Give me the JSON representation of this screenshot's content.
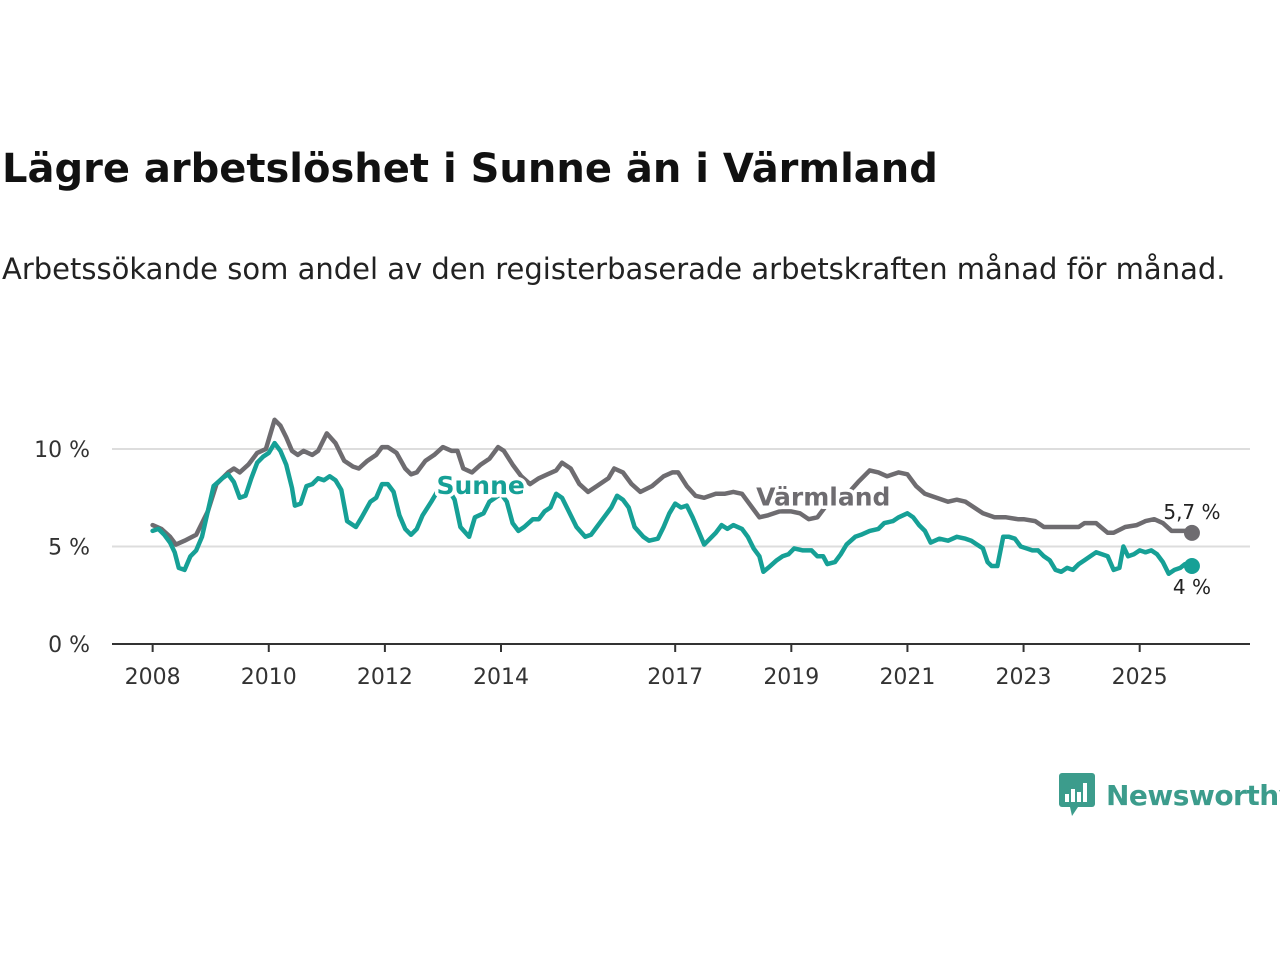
{
  "title": "Lägre arbetslöshet i Sunne än i Värmland",
  "subtitle": "Arbetssökande som andel av den registerbaserade arbetskraften månad för månad.",
  "brand": {
    "name": "Newsworthy",
    "icon": "newsworthy-logo-icon"
  },
  "colors": {
    "sunne": "#16a096",
    "varmland": "#6e6c70",
    "grid": "#dddddd",
    "axis": "#333333",
    "brand": "#3c9c8c"
  },
  "chart_data": {
    "type": "line",
    "ylabel": "",
    "xlabel": "",
    "ylim": [
      0,
      12
    ],
    "xlim": [
      2007.3,
      2026.9
    ],
    "y_ticks": [
      {
        "value": 0,
        "label": "0 %"
      },
      {
        "value": 5,
        "label": "5 %"
      },
      {
        "value": 10,
        "label": "10 %"
      }
    ],
    "x_ticks": [
      {
        "value": 2008,
        "label": "2008"
      },
      {
        "value": 2010,
        "label": "2010"
      },
      {
        "value": 2012,
        "label": "2012"
      },
      {
        "value": 2014,
        "label": "2014"
      },
      {
        "value": 2017,
        "label": "2017"
      },
      {
        "value": 2019,
        "label": "2019"
      },
      {
        "value": 2021,
        "label": "2021"
      },
      {
        "value": 2023,
        "label": "2023"
      },
      {
        "value": 2025,
        "label": "2025"
      }
    ],
    "series": [
      {
        "name": "Värmland",
        "key": "varmland",
        "end_label": "5,7 %",
        "points": [
          [
            2008.0,
            6.1
          ],
          [
            2008.15,
            5.9
          ],
          [
            2008.3,
            5.5
          ],
          [
            2008.4,
            5.1
          ],
          [
            2008.55,
            5.3
          ],
          [
            2008.75,
            5.6
          ],
          [
            2008.95,
            6.8
          ],
          [
            2009.1,
            8.2
          ],
          [
            2009.3,
            8.8
          ],
          [
            2009.4,
            9.0
          ],
          [
            2009.5,
            8.8
          ],
          [
            2009.65,
            9.2
          ],
          [
            2009.8,
            9.8
          ],
          [
            2009.95,
            10.0
          ],
          [
            2010.0,
            10.5
          ],
          [
            2010.1,
            11.5
          ],
          [
            2010.2,
            11.2
          ],
          [
            2010.3,
            10.6
          ],
          [
            2010.4,
            9.9
          ],
          [
            2010.5,
            9.7
          ],
          [
            2010.6,
            9.9
          ],
          [
            2010.75,
            9.7
          ],
          [
            2010.85,
            9.9
          ],
          [
            2011.0,
            10.8
          ],
          [
            2011.15,
            10.3
          ],
          [
            2011.3,
            9.4
          ],
          [
            2011.45,
            9.1
          ],
          [
            2011.55,
            9.0
          ],
          [
            2011.7,
            9.4
          ],
          [
            2011.85,
            9.7
          ],
          [
            2011.95,
            10.1
          ],
          [
            2012.05,
            10.1
          ],
          [
            2012.2,
            9.8
          ],
          [
            2012.35,
            9.0
          ],
          [
            2012.45,
            8.7
          ],
          [
            2012.55,
            8.8
          ],
          [
            2012.7,
            9.4
          ],
          [
            2012.85,
            9.7
          ],
          [
            2013.0,
            10.1
          ],
          [
            2013.15,
            9.9
          ],
          [
            2013.25,
            9.9
          ],
          [
            2013.35,
            9.0
          ],
          [
            2013.5,
            8.8
          ],
          [
            2013.65,
            9.2
          ],
          [
            2013.8,
            9.5
          ],
          [
            2013.95,
            10.1
          ],
          [
            2014.05,
            9.9
          ],
          [
            2014.2,
            9.2
          ],
          [
            2014.35,
            8.6
          ],
          [
            2014.5,
            8.2
          ],
          [
            2014.65,
            8.5
          ],
          [
            2014.8,
            8.7
          ],
          [
            2014.95,
            8.9
          ],
          [
            2015.05,
            9.3
          ],
          [
            2015.2,
            9.0
          ],
          [
            2015.35,
            8.2
          ],
          [
            2015.5,
            7.8
          ],
          [
            2015.65,
            8.1
          ],
          [
            2015.85,
            8.5
          ],
          [
            2015.95,
            9.0
          ],
          [
            2016.1,
            8.8
          ],
          [
            2016.25,
            8.2
          ],
          [
            2016.4,
            7.8
          ],
          [
            2016.6,
            8.1
          ],
          [
            2016.8,
            8.6
          ],
          [
            2016.95,
            8.8
          ],
          [
            2017.05,
            8.8
          ],
          [
            2017.2,
            8.1
          ],
          [
            2017.35,
            7.6
          ],
          [
            2017.5,
            7.5
          ],
          [
            2017.7,
            7.7
          ],
          [
            2017.85,
            7.7
          ],
          [
            2018.0,
            7.8
          ],
          [
            2018.15,
            7.7
          ],
          [
            2018.3,
            7.1
          ],
          [
            2018.45,
            6.5
          ],
          [
            2018.6,
            6.6
          ],
          [
            2018.8,
            6.8
          ],
          [
            2019.0,
            6.8
          ],
          [
            2019.15,
            6.7
          ],
          [
            2019.3,
            6.4
          ],
          [
            2019.45,
            6.5
          ],
          [
            2019.6,
            7.1
          ],
          [
            2019.8,
            7.5
          ],
          [
            2020.0,
            7.8
          ],
          [
            2020.15,
            8.3
          ],
          [
            2020.35,
            8.9
          ],
          [
            2020.5,
            8.8
          ],
          [
            2020.65,
            8.6
          ],
          [
            2020.85,
            8.8
          ],
          [
            2021.0,
            8.7
          ],
          [
            2021.15,
            8.1
          ],
          [
            2021.3,
            7.7
          ],
          [
            2021.5,
            7.5
          ],
          [
            2021.7,
            7.3
          ],
          [
            2021.85,
            7.4
          ],
          [
            2022.0,
            7.3
          ],
          [
            2022.15,
            7.0
          ],
          [
            2022.3,
            6.7
          ],
          [
            2022.5,
            6.5
          ],
          [
            2022.7,
            6.5
          ],
          [
            2022.9,
            6.4
          ],
          [
            2023.0,
            6.4
          ],
          [
            2023.2,
            6.3
          ],
          [
            2023.35,
            6.0
          ],
          [
            2023.6,
            6.0
          ],
          [
            2023.8,
            6.0
          ],
          [
            2023.95,
            6.0
          ],
          [
            2024.05,
            6.2
          ],
          [
            2024.25,
            6.2
          ],
          [
            2024.45,
            5.7
          ],
          [
            2024.55,
            5.7
          ],
          [
            2024.75,
            6.0
          ],
          [
            2024.95,
            6.1
          ],
          [
            2025.1,
            6.3
          ],
          [
            2025.25,
            6.4
          ],
          [
            2025.4,
            6.2
          ],
          [
            2025.55,
            5.8
          ],
          [
            2025.7,
            5.8
          ],
          [
            2025.8,
            5.8
          ],
          [
            2025.9,
            5.7
          ]
        ]
      },
      {
        "name": "Sunne",
        "key": "sunne",
        "end_label": "4 %",
        "points": [
          [
            2008.0,
            5.8
          ],
          [
            2008.1,
            5.9
          ],
          [
            2008.2,
            5.6
          ],
          [
            2008.3,
            5.2
          ],
          [
            2008.38,
            4.7
          ],
          [
            2008.45,
            3.9
          ],
          [
            2008.55,
            3.8
          ],
          [
            2008.65,
            4.5
          ],
          [
            2008.75,
            4.8
          ],
          [
            2008.85,
            5.5
          ],
          [
            2008.95,
            6.8
          ],
          [
            2009.05,
            8.1
          ],
          [
            2009.2,
            8.5
          ],
          [
            2009.3,
            8.7
          ],
          [
            2009.4,
            8.3
          ],
          [
            2009.5,
            7.5
          ],
          [
            2009.6,
            7.6
          ],
          [
            2009.7,
            8.5
          ],
          [
            2009.8,
            9.3
          ],
          [
            2009.9,
            9.6
          ],
          [
            2010.0,
            9.8
          ],
          [
            2010.1,
            10.3
          ],
          [
            2010.2,
            9.9
          ],
          [
            2010.3,
            9.2
          ],
          [
            2010.4,
            8.0
          ],
          [
            2010.45,
            7.1
          ],
          [
            2010.55,
            7.2
          ],
          [
            2010.65,
            8.1
          ],
          [
            2010.75,
            8.2
          ],
          [
            2010.85,
            8.5
          ],
          [
            2010.95,
            8.4
          ],
          [
            2011.05,
            8.6
          ],
          [
            2011.15,
            8.4
          ],
          [
            2011.25,
            7.9
          ],
          [
            2011.35,
            6.3
          ],
          [
            2011.5,
            6.0
          ],
          [
            2011.6,
            6.5
          ],
          [
            2011.75,
            7.3
          ],
          [
            2011.85,
            7.5
          ],
          [
            2011.95,
            8.2
          ],
          [
            2012.05,
            8.2
          ],
          [
            2012.15,
            7.8
          ],
          [
            2012.25,
            6.6
          ],
          [
            2012.35,
            5.9
          ],
          [
            2012.45,
            5.6
          ],
          [
            2012.55,
            5.9
          ],
          [
            2012.65,
            6.6
          ],
          [
            2012.8,
            7.3
          ],
          [
            2012.9,
            7.8
          ],
          [
            2013.0,
            7.9
          ],
          [
            2013.1,
            7.9
          ],
          [
            2013.2,
            7.4
          ],
          [
            2013.3,
            6.0
          ],
          [
            2013.45,
            5.5
          ],
          [
            2013.55,
            6.5
          ],
          [
            2013.7,
            6.7
          ],
          [
            2013.8,
            7.3
          ],
          [
            2013.9,
            7.5
          ],
          [
            2014.0,
            7.7
          ],
          [
            2014.1,
            7.3
          ],
          [
            2014.2,
            6.2
          ],
          [
            2014.3,
            5.8
          ],
          [
            2014.4,
            6.0
          ],
          [
            2014.55,
            6.4
          ],
          [
            2014.65,
            6.4
          ],
          [
            2014.75,
            6.8
          ],
          [
            2014.85,
            7.0
          ],
          [
            2014.95,
            7.7
          ],
          [
            2015.05,
            7.5
          ],
          [
            2015.15,
            6.9
          ],
          [
            2015.3,
            6.0
          ],
          [
            2015.45,
            5.5
          ],
          [
            2015.55,
            5.6
          ],
          [
            2015.65,
            6.0
          ],
          [
            2015.8,
            6.6
          ],
          [
            2015.9,
            7.0
          ],
          [
            2016.0,
            7.6
          ],
          [
            2016.1,
            7.4
          ],
          [
            2016.2,
            7.0
          ],
          [
            2016.3,
            6.0
          ],
          [
            2016.45,
            5.5
          ],
          [
            2016.55,
            5.3
          ],
          [
            2016.7,
            5.4
          ],
          [
            2016.8,
            6.0
          ],
          [
            2016.9,
            6.7
          ],
          [
            2017.0,
            7.2
          ],
          [
            2017.1,
            7.0
          ],
          [
            2017.2,
            7.1
          ],
          [
            2017.3,
            6.5
          ],
          [
            2017.4,
            5.8
          ],
          [
            2017.5,
            5.1
          ],
          [
            2017.6,
            5.4
          ],
          [
            2017.7,
            5.7
          ],
          [
            2017.8,
            6.1
          ],
          [
            2017.9,
            5.9
          ],
          [
            2018.0,
            6.1
          ],
          [
            2018.15,
            5.9
          ],
          [
            2018.25,
            5.5
          ],
          [
            2018.35,
            4.9
          ],
          [
            2018.45,
            4.5
          ],
          [
            2018.52,
            3.7
          ],
          [
            2018.6,
            3.9
          ],
          [
            2018.75,
            4.3
          ],
          [
            2018.85,
            4.5
          ],
          [
            2018.95,
            4.6
          ],
          [
            2019.05,
            4.9
          ],
          [
            2019.2,
            4.8
          ],
          [
            2019.35,
            4.8
          ],
          [
            2019.45,
            4.5
          ],
          [
            2019.55,
            4.5
          ],
          [
            2019.62,
            4.1
          ],
          [
            2019.75,
            4.2
          ],
          [
            2019.85,
            4.6
          ],
          [
            2019.95,
            5.1
          ],
          [
            2020.1,
            5.5
          ],
          [
            2020.2,
            5.6
          ],
          [
            2020.35,
            5.8
          ],
          [
            2020.5,
            5.9
          ],
          [
            2020.6,
            6.2
          ],
          [
            2020.75,
            6.3
          ],
          [
            2020.85,
            6.5
          ],
          [
            2021.0,
            6.7
          ],
          [
            2021.1,
            6.5
          ],
          [
            2021.2,
            6.1
          ],
          [
            2021.3,
            5.8
          ],
          [
            2021.4,
            5.2
          ],
          [
            2021.55,
            5.4
          ],
          [
            2021.7,
            5.3
          ],
          [
            2021.85,
            5.5
          ],
          [
            2022.0,
            5.4
          ],
          [
            2022.1,
            5.3
          ],
          [
            2022.2,
            5.1
          ],
          [
            2022.3,
            4.9
          ],
          [
            2022.38,
            4.2
          ],
          [
            2022.45,
            4.0
          ],
          [
            2022.55,
            4.0
          ],
          [
            2022.65,
            5.5
          ],
          [
            2022.75,
            5.5
          ],
          [
            2022.85,
            5.4
          ],
          [
            2022.95,
            5.0
          ],
          [
            2023.05,
            4.9
          ],
          [
            2023.15,
            4.8
          ],
          [
            2023.25,
            4.8
          ],
          [
            2023.35,
            4.5
          ],
          [
            2023.45,
            4.3
          ],
          [
            2023.55,
            3.8
          ],
          [
            2023.65,
            3.7
          ],
          [
            2023.75,
            3.9
          ],
          [
            2023.85,
            3.8
          ],
          [
            2023.95,
            4.1
          ],
          [
            2024.05,
            4.3
          ],
          [
            2024.15,
            4.5
          ],
          [
            2024.25,
            4.7
          ],
          [
            2024.35,
            4.6
          ],
          [
            2024.45,
            4.5
          ],
          [
            2024.55,
            3.8
          ],
          [
            2024.65,
            3.9
          ],
          [
            2024.72,
            5.0
          ],
          [
            2024.8,
            4.5
          ],
          [
            2024.9,
            4.6
          ],
          [
            2025.0,
            4.8
          ],
          [
            2025.1,
            4.7
          ],
          [
            2025.2,
            4.8
          ],
          [
            2025.3,
            4.6
          ],
          [
            2025.4,
            4.2
          ],
          [
            2025.5,
            3.6
          ],
          [
            2025.6,
            3.8
          ],
          [
            2025.7,
            3.9
          ],
          [
            2025.78,
            4.1
          ],
          [
            2025.9,
            4.0
          ]
        ]
      }
    ],
    "series_labels": [
      {
        "series": "sunne",
        "text": "Sunne",
        "at": [
          2013.65,
          7.7
        ]
      },
      {
        "series": "varmland",
        "text": "Värmland",
        "at": [
          2019.55,
          7.1
        ]
      }
    ]
  }
}
